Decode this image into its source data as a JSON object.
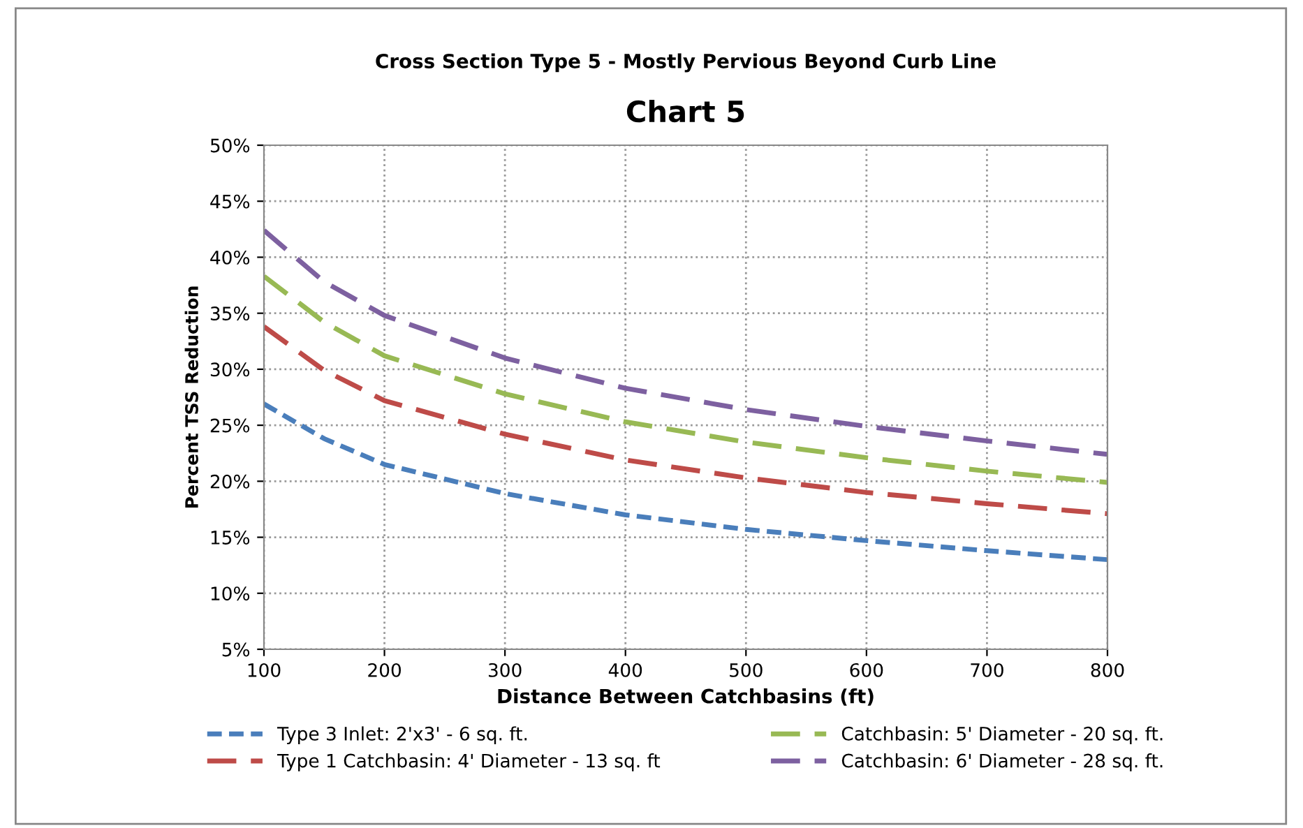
{
  "chart_data": {
    "type": "line",
    "title": "Chart 5",
    "subtitle": "Cross Section Type 5 - Mostly Pervious Beyond Curb Line",
    "xlabel": "Distance Between Catchbasins (ft)",
    "ylabel": "Percent TSS Reduction",
    "x": [
      100,
      150,
      200,
      300,
      400,
      500,
      600,
      700,
      800
    ],
    "series": [
      {
        "name": "Type 3 Inlet: 2'x3' - 6 sq. ft.",
        "color": "#4a7ebb",
        "line_style": "dotted",
        "values": [
          26.9,
          23.8,
          21.5,
          18.9,
          17.0,
          15.7,
          14.7,
          13.8,
          13.0
        ]
      },
      {
        "name": "Type 1 Catchbasin: 4' Diameter - 13 sq. ft",
        "color": "#be4b48",
        "line_style": "dashed",
        "values": [
          33.8,
          29.9,
          27.2,
          24.2,
          21.9,
          20.3,
          19.0,
          18.0,
          17.1
        ]
      },
      {
        "name": "Catchbasin: 5' Diameter - 20 sq. ft.",
        "color": "#98b954",
        "line_style": "dashed",
        "values": [
          38.3,
          34.2,
          31.2,
          27.8,
          25.3,
          23.5,
          22.1,
          20.9,
          19.9
        ]
      },
      {
        "name": "Catchbasin: 6' Diameter - 28 sq. ft.",
        "color": "#7d60a0",
        "line_style": "dashed",
        "values": [
          42.4,
          37.8,
          34.8,
          31.0,
          28.3,
          26.4,
          24.9,
          23.6,
          22.4
        ]
      }
    ],
    "xlim": [
      100,
      800
    ],
    "xticks": [
      100,
      200,
      300,
      400,
      500,
      600,
      700,
      800
    ],
    "ylim": [
      5,
      50
    ],
    "yticks": [
      {
        "value": 5,
        "label": "5%"
      },
      {
        "value": 10,
        "label": "10%"
      },
      {
        "value": 15,
        "label": "15%"
      },
      {
        "value": 20,
        "label": "20%"
      },
      {
        "value": 25,
        "label": "25%"
      },
      {
        "value": 30,
        "label": "30%"
      },
      {
        "value": 35,
        "label": "35%"
      },
      {
        "value": 40,
        "label": "40%"
      },
      {
        "value": 45,
        "label": "45%"
      },
      {
        "value": 50,
        "label": "50%"
      }
    ],
    "grid": true,
    "legend": "bottom",
    "marker": "none"
  }
}
